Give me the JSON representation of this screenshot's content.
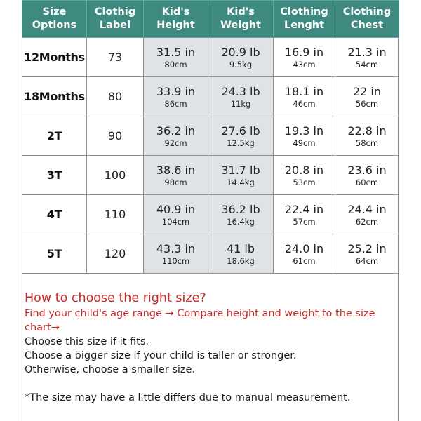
{
  "headers": [
    {
      "line1": "Size",
      "line2": "Options"
    },
    {
      "line1": "Clothig",
      "line2": "Label"
    },
    {
      "line1": "Kid's",
      "line2": "Height"
    },
    {
      "line1": "Kid's",
      "line2": "Weight"
    },
    {
      "line1": "Clothing",
      "line2": "Lenght"
    },
    {
      "line1": "Clothing",
      "line2": "Chest"
    }
  ],
  "rows": [
    {
      "size": "12Months",
      "label": "73",
      "height": {
        "in": "31.5 in",
        "metric": "80cm"
      },
      "weight": {
        "lb": "20.9 lb",
        "metric": "9.5kg"
      },
      "length": {
        "in": "16.9 in",
        "metric": "43cm"
      },
      "chest": {
        "in": "21.3 in",
        "metric": "54cm"
      }
    },
    {
      "size": "18Months",
      "label": "80",
      "height": {
        "in": "33.9 in",
        "metric": "86cm"
      },
      "weight": {
        "lb": "24.3 lb",
        "metric": "11kg"
      },
      "length": {
        "in": "18.1 in",
        "metric": "46cm"
      },
      "chest": {
        "in": "22 in",
        "metric": "56cm"
      }
    },
    {
      "size": "2T",
      "label": "90",
      "height": {
        "in": "36.2 in",
        "metric": "92cm"
      },
      "weight": {
        "lb": "27.6 lb",
        "metric": "12.5kg"
      },
      "length": {
        "in": "19.3 in",
        "metric": "49cm"
      },
      "chest": {
        "in": "22.8 in",
        "metric": "58cm"
      }
    },
    {
      "size": "3T",
      "label": "100",
      "height": {
        "in": "38.6 in",
        "metric": "98cm"
      },
      "weight": {
        "lb": "31.7 lb",
        "metric": "14.4kg"
      },
      "length": {
        "in": "20.8 in",
        "metric": "53cm"
      },
      "chest": {
        "in": "23.6 in",
        "metric": "60cm"
      }
    },
    {
      "size": "4T",
      "label": "110",
      "height": {
        "in": "40.9 in",
        "metric": "104cm"
      },
      "weight": {
        "lb": "36.2 lb",
        "metric": "16.4kg"
      },
      "length": {
        "in": "22.4 in",
        "metric": "57cm"
      },
      "chest": {
        "in": "24.4 in",
        "metric": "62cm"
      }
    },
    {
      "size": "5T",
      "label": "120",
      "height": {
        "in": "43.3 in",
        "metric": "110cm"
      },
      "weight": {
        "lb": "41 lb",
        "metric": "18.6kg"
      },
      "length": {
        "in": "24.0 in",
        "metric": "61cm"
      },
      "chest": {
        "in": "25.2 in",
        "metric": "64cm"
      }
    }
  ],
  "guide": {
    "heading": "How to choose the right size?",
    "step": "Find your child's age range → Compare height and weight to the size chart→",
    "lines": [
      "Choose this size if it fits.",
      "Choose a bigger size if your child is taller or stronger.",
      "Otherwise, choose a smaller size."
    ],
    "note": "*The size  may have a little differs due to manual measurement."
  },
  "colors": {
    "header_bg": "#3f8a80",
    "shaded_cell": "#dfe2e6",
    "guide_red": "#c62a28"
  }
}
